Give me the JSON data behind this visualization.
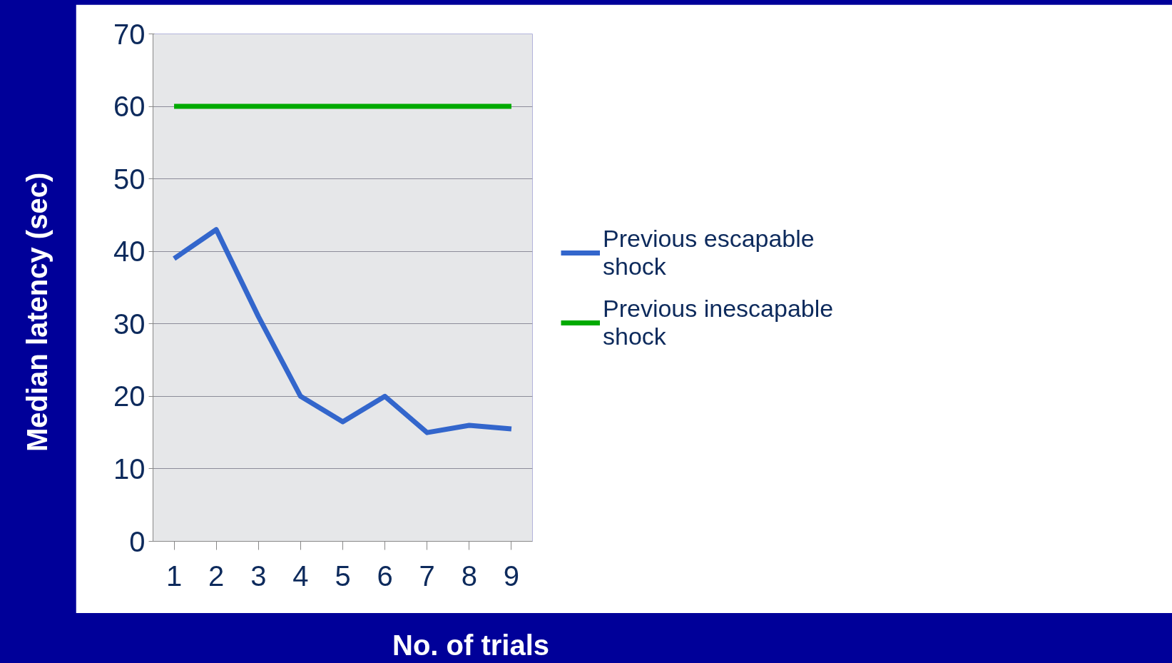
{
  "chart_data": {
    "type": "line",
    "xlabel": "No. of trials",
    "ylabel": "Median latency (sec)",
    "categories": [
      "1",
      "2",
      "3",
      "4",
      "5",
      "6",
      "7",
      "8",
      "9"
    ],
    "series": [
      {
        "name": "Previous escapable shock",
        "color": "#3366cc",
        "values": [
          39,
          43,
          31,
          20,
          16.5,
          20,
          15,
          16,
          15.5
        ]
      },
      {
        "name": "Previous inescapable shock",
        "color": "#00aa00",
        "values": [
          60,
          60,
          60,
          60,
          60,
          60,
          60,
          60,
          60
        ]
      }
    ],
    "ylim": [
      0,
      70
    ],
    "yticks": [
      0,
      10,
      20,
      30,
      40,
      50,
      60,
      70
    ],
    "grid": "y",
    "legend": "right",
    "marker": "none",
    "line_style": "solid"
  }
}
